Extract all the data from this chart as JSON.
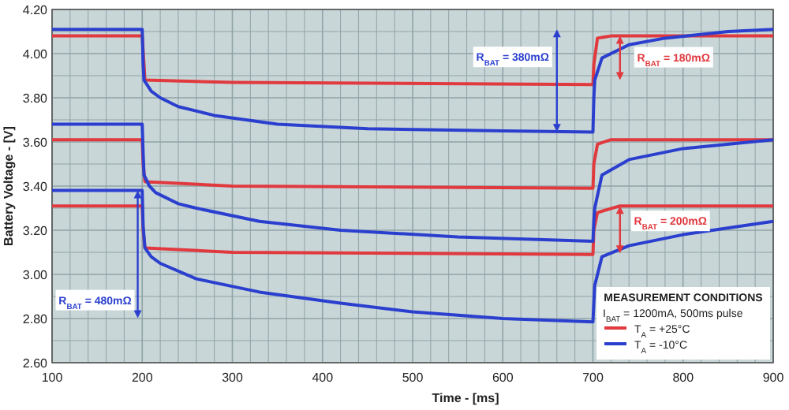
{
  "chart_data": {
    "type": "line",
    "xlabel": "Time - [ms]",
    "ylabel": "Battery Voltage - [V]",
    "legend_title": "MEASUREMENT CONDITIONS",
    "legend": "bottom right",
    "grid": true,
    "line_style": "solid",
    "marker": "none",
    "xlim": [
      100,
      900
    ],
    "xticks": [
      100,
      {
        "value": 120,
        "label": null
      },
      {
        "value": 140,
        "label": null
      },
      {
        "value": 160,
        "label": null
      },
      {
        "value": 180,
        "label": null
      },
      200,
      {
        "value": 220,
        "label": null
      },
      {
        "value": 240,
        "label": null
      },
      {
        "value": 260,
        "label": null
      },
      {
        "value": 280,
        "label": null
      },
      300,
      {
        "value": 320,
        "label": null
      },
      {
        "value": 340,
        "label": null
      },
      {
        "value": 360,
        "label": null
      },
      {
        "value": 380,
        "label": null
      },
      400,
      {
        "value": 420,
        "label": null
      },
      {
        "value": 440,
        "label": null
      },
      {
        "value": 460,
        "label": null
      },
      {
        "value": 480,
        "label": null
      },
      500,
      {
        "value": 520,
        "label": null
      },
      {
        "value": 540,
        "label": null
      },
      {
        "value": 560,
        "label": null
      },
      {
        "value": 580,
        "label": null
      },
      600,
      {
        "value": 620,
        "label": null
      },
      {
        "value": 640,
        "label": null
      },
      {
        "value": 660,
        "label": null
      },
      {
        "value": 680,
        "label": null
      },
      700,
      {
        "value": 720,
        "label": null
      },
      {
        "value": 740,
        "label": null
      },
      {
        "value": 760,
        "label": null
      },
      {
        "value": 780,
        "label": null
      },
      800,
      {
        "value": 820,
        "label": null
      },
      {
        "value": 840,
        "label": null
      },
      {
        "value": 860,
        "label": null
      },
      {
        "value": 880,
        "label": null
      },
      900
    ],
    "ylim": [
      2.6,
      4.2
    ],
    "yticks": [
      {
        "value": 2.6,
        "label": "2.60"
      },
      {
        "value": 2.7,
        "label": null
      },
      {
        "value": 2.8,
        "label": "2.80"
      },
      {
        "value": 2.9,
        "label": null
      },
      {
        "value": 3.0,
        "label": "3.00"
      },
      {
        "value": 3.1,
        "label": null
      },
      {
        "value": 3.2,
        "label": "3.20"
      },
      {
        "value": 3.3,
        "label": null
      },
      {
        "value": 3.4,
        "label": "3.40"
      },
      {
        "value": 3.5,
        "label": null
      },
      {
        "value": 3.6,
        "label": "3.60"
      },
      {
        "value": 3.7,
        "label": null
      },
      {
        "value": 3.8,
        "label": "3.80"
      },
      {
        "value": 3.9,
        "label": null
      },
      {
        "value": 4.0,
        "label": "4.00"
      },
      {
        "value": 4.1,
        "label": null
      },
      {
        "value": 4.2,
        "label": "4.20"
      }
    ],
    "series": [
      {
        "name": "T$_{A}$ = +25°C",
        "color": "#e0393e",
        "x": [
          100,
          200,
          203,
          300,
          700,
          701,
          705,
          720,
          900
        ],
        "values": [
          4.08,
          4.08,
          3.88,
          3.87,
          3.86,
          3.95,
          4.07,
          4.08,
          4.08
        ]
      },
      {
        "color": "#e0393e",
        "x": [
          100,
          200,
          201,
          203,
          300,
          700,
          701,
          705,
          720,
          900
        ],
        "values": [
          3.61,
          3.61,
          3.5,
          3.42,
          3.4,
          3.39,
          3.5,
          3.59,
          3.61,
          3.61
        ]
      },
      {
        "color": "#e0393e",
        "x": [
          100,
          200,
          201,
          203,
          300,
          700,
          701,
          705,
          730,
          900
        ],
        "values": [
          3.31,
          3.31,
          3.2,
          3.12,
          3.1,
          3.09,
          3.2,
          3.28,
          3.31,
          3.31
        ]
      },
      {
        "name": "T$_{A}$ = -10°C",
        "color": "#2b3fcf",
        "x": [
          100,
          200,
          201,
          202,
          210,
          220,
          240,
          280,
          350,
          450,
          600,
          700,
          701,
          702,
          710,
          740,
          780,
          850,
          900
        ],
        "values": [
          4.11,
          4.11,
          3.95,
          3.88,
          3.83,
          3.8,
          3.76,
          3.72,
          3.68,
          3.66,
          3.65,
          3.645,
          3.8,
          3.88,
          3.98,
          4.04,
          4.07,
          4.1,
          4.11
        ]
      },
      {
        "color": "#2b3fcf",
        "x": [
          100,
          200,
          201,
          202,
          208,
          215,
          240,
          260,
          330,
          420,
          550,
          700,
          701,
          702,
          710,
          740,
          800,
          900
        ],
        "values": [
          3.68,
          3.68,
          3.55,
          3.45,
          3.4,
          3.37,
          3.32,
          3.3,
          3.24,
          3.2,
          3.17,
          3.15,
          3.24,
          3.3,
          3.45,
          3.52,
          3.57,
          3.61
        ]
      },
      {
        "color": "#2b3fcf",
        "x": [
          100,
          200,
          201,
          203,
          210,
          220,
          260,
          330,
          420,
          500,
          600,
          700,
          701,
          702,
          710,
          740,
          800,
          900
        ],
        "values": [
          3.38,
          3.38,
          3.22,
          3.12,
          3.08,
          3.05,
          2.98,
          2.92,
          2.87,
          2.83,
          2.8,
          2.785,
          2.87,
          2.95,
          3.08,
          3.13,
          3.18,
          3.24
        ]
      }
    ],
    "annotations": [
      {
        "text": "R$_{BAT}$ = 380mΩ",
        "x": 660,
        "y": 3.86
      },
      {
        "text": "R$_{BAT}$ = 180mΩ",
        "x": 730,
        "y": 4.08
      },
      {
        "text": "R$_{BAT}$ = 200mΩ",
        "x": 730,
        "y": 3.31
      },
      {
        "text": "R$_{BAT}$ = 480mΩ",
        "x": 195,
        "y": 3.38
      },
      "I$_{BAT}$ = 1200mA, 500ms pulse"
    ]
  }
}
